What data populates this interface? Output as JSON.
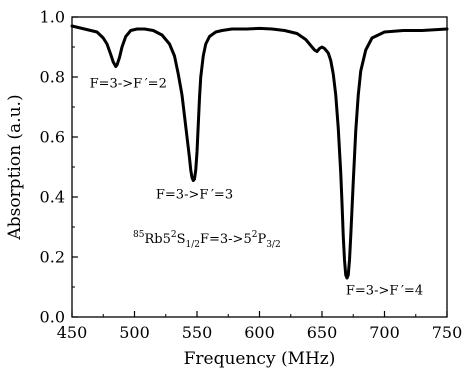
{
  "chart_data": {
    "type": "line",
    "xlabel": "Frequency (MHz)",
    "ylabel": "Absorption (a.u.)",
    "xlim": [
      450,
      750
    ],
    "ylim": [
      0.0,
      1.0
    ],
    "x_ticks": [
      "450",
      "500",
      "550",
      "600",
      "650",
      "700",
      "750"
    ],
    "y_ticks": [
      "0.0",
      "0.2",
      "0.4",
      "0.6",
      "0.8",
      "1.0"
    ],
    "grid": false,
    "legend": "none",
    "series": [
      {
        "color": "#000000",
        "x": [
          450,
          460,
          465,
          470,
          475,
          478,
          481,
          483,
          485,
          486,
          488,
          490,
          493,
          497,
          502,
          508,
          515,
          522,
          528,
          532,
          535,
          538,
          540,
          542,
          544,
          545,
          546,
          547,
          548,
          549,
          550,
          551,
          552,
          553,
          555,
          557,
          560,
          565,
          570,
          578,
          590,
          600,
          610,
          620,
          630,
          637,
          641,
          644,
          646,
          648,
          650,
          652,
          655,
          657,
          659,
          661,
          663,
          665,
          666,
          667,
          668,
          669,
          670,
          671,
          672,
          673,
          675,
          677,
          679,
          681,
          685,
          690,
          700,
          715,
          730,
          750
        ],
        "y": [
          0.97,
          0.96,
          0.955,
          0.95,
          0.93,
          0.91,
          0.875,
          0.85,
          0.835,
          0.84,
          0.865,
          0.9,
          0.935,
          0.955,
          0.96,
          0.96,
          0.955,
          0.94,
          0.91,
          0.87,
          0.81,
          0.74,
          0.67,
          0.6,
          0.53,
          0.49,
          0.465,
          0.455,
          0.46,
          0.49,
          0.55,
          0.64,
          0.73,
          0.8,
          0.87,
          0.91,
          0.935,
          0.95,
          0.955,
          0.96,
          0.96,
          0.962,
          0.96,
          0.955,
          0.945,
          0.925,
          0.905,
          0.89,
          0.885,
          0.895,
          0.9,
          0.895,
          0.88,
          0.855,
          0.81,
          0.74,
          0.63,
          0.48,
          0.38,
          0.27,
          0.19,
          0.14,
          0.13,
          0.14,
          0.19,
          0.27,
          0.45,
          0.62,
          0.74,
          0.82,
          0.89,
          0.93,
          0.95,
          0.955,
          0.955,
          0.96
        ]
      }
    ],
    "annotations": [
      {
        "text": "F=3->F ′=2",
        "x": 495,
        "y": 0.765
      },
      {
        "text": "F=3->F ′=3",
        "x": 548,
        "y": 0.395
      },
      {
        "text": "F=3->F ′=4",
        "x": 700,
        "y": 0.075
      }
    ],
    "transition_label": {
      "sup1": "85",
      "t1": "Rb5",
      "sup2": "2",
      "t2": "S",
      "sub1": "1/2",
      "t3": "F=3->5",
      "sup3": "2",
      "t4": "P",
      "sub2": "3/2"
    }
  }
}
